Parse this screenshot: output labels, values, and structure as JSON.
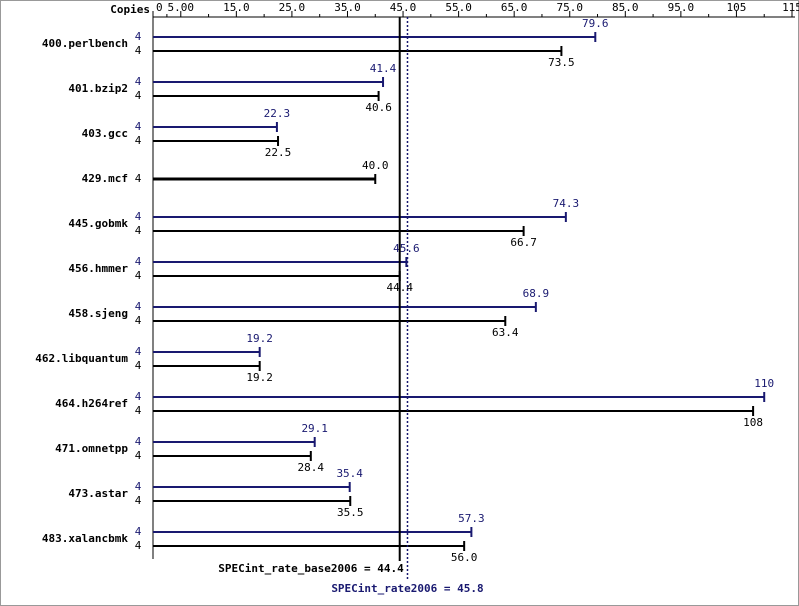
{
  "chart_data": {
    "type": "bar",
    "orientation": "horizontal",
    "copies_label": "Copies",
    "categories": [
      "400.perlbench",
      "401.bzip2",
      "403.gcc",
      "429.mcf",
      "445.gobmk",
      "456.hmmer",
      "458.sjeng",
      "462.libquantum",
      "464.h264ref",
      "471.omnetpp",
      "473.astar",
      "483.xalancbmk"
    ],
    "series": [
      {
        "color": "#191970",
        "copies": [
          4,
          4,
          4,
          null,
          4,
          4,
          4,
          4,
          4,
          4,
          4,
          4
        ],
        "values": [
          79.6,
          41.4,
          22.3,
          null,
          74.3,
          45.6,
          68.9,
          19.2,
          110,
          29.1,
          35.4,
          57.3
        ],
        "value_labels": [
          "79.6",
          "41.4",
          "22.3",
          null,
          "74.3",
          "45.6",
          "68.9",
          "19.2",
          "110",
          "29.1",
          "35.4",
          "57.3"
        ]
      },
      {
        "color": "#000000",
        "copies": [
          4,
          4,
          4,
          4,
          4,
          4,
          4,
          4,
          4,
          4,
          4,
          4
        ],
        "values": [
          73.5,
          40.6,
          22.5,
          40.0,
          66.7,
          44.4,
          63.4,
          19.2,
          108,
          28.4,
          35.5,
          56.0
        ],
        "value_labels": [
          "73.5",
          "40.6",
          "22.5",
          "40.0",
          "66.7",
          "44.4",
          "63.4",
          "19.2",
          "108",
          "28.4",
          "35.5",
          "56.0"
        ]
      }
    ],
    "xlim": [
      0,
      115
    ],
    "xticks": [
      0,
      {
        "value": 5,
        "label": "5.00"
      },
      {
        "value": 15,
        "label": "15.0"
      },
      {
        "value": 25,
        "label": "25.0"
      },
      {
        "value": 35,
        "label": "35.0"
      },
      {
        "value": 45,
        "label": "45.0"
      },
      {
        "value": 55,
        "label": "55.0"
      },
      {
        "value": 65,
        "label": "65.0"
      },
      {
        "value": 75,
        "label": "75.0"
      },
      {
        "value": 85,
        "label": "85.0"
      },
      {
        "value": 95,
        "label": "95.0"
      },
      105,
      115
    ],
    "reference_lines": [
      {
        "label": "SPECint_rate_base2006 = 44.4",
        "value": 44.4,
        "color": "#000000",
        "style": "solid"
      },
      {
        "label": "SPECint_rate2006 = 45.8",
        "value": 45.8,
        "color": "#191970",
        "style": "dotted"
      }
    ]
  }
}
